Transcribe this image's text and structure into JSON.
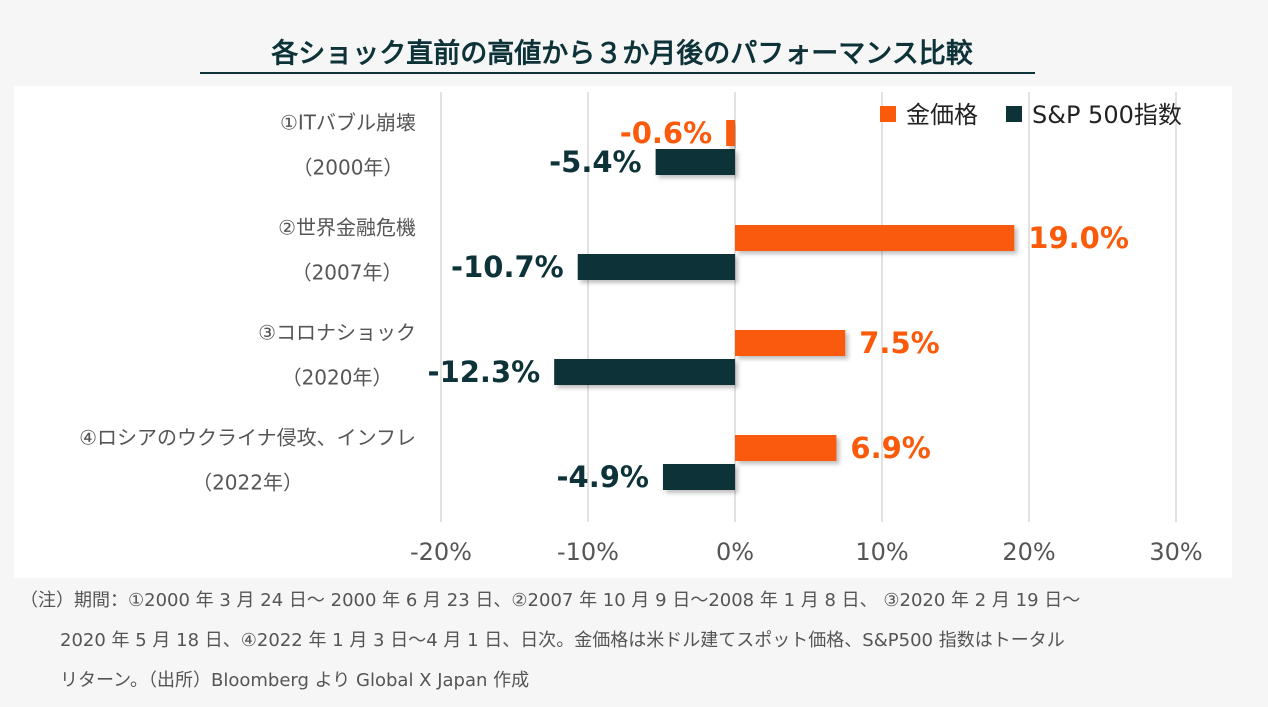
{
  "chart_data": {
    "type": "hbar",
    "title": "各ショック直前の高値から３か月後のパフォーマンス比較",
    "categories": [
      [
        "①ITバブル崩壊",
        "（2000年）"
      ],
      [
        "②世界金融危機",
        "（2007年）"
      ],
      [
        "③コロナショック",
        "（2020年）"
      ],
      [
        "④ロシアのウクライナ侵攻、インフレ",
        "（2022年）"
      ]
    ],
    "series": [
      {
        "name": "金価格",
        "color": "#fa5a0a",
        "values": [
          -0.6,
          19.0,
          7.5,
          6.9
        ],
        "value_labels": [
          "-0.6%",
          "19.0%",
          "7.5%",
          "6.9%"
        ]
      },
      {
        "name": "S&P 500指数",
        "color": "#0d3338",
        "values": [
          -5.4,
          -10.7,
          -12.3,
          -4.9
        ],
        "value_labels": [
          "-5.4%",
          "-10.7%",
          "-12.3%",
          "-4.9%"
        ]
      }
    ],
    "xlim": [
      -20,
      30
    ],
    "xticks": [
      {
        "value": -20,
        "label": "-20%"
      },
      {
        "value": -10,
        "label": "-10%"
      },
      {
        "value": 0,
        "label": "0%"
      },
      {
        "value": 10,
        "label": "10%"
      },
      {
        "value": 20,
        "label": "20%"
      },
      {
        "value": 30,
        "label": "30%"
      }
    ],
    "grid": true,
    "legend": "top-right",
    "notes": [
      "（注）期間：①2000 年 3 月 24 日～ 2000 年 6 月 23 日、②2007 年 10 月 9 日～2008 年 1 月 8 日、 ③2020 年 2 月 19 日～",
      "2020 年 5 月 18 日、④2022 年 1 月 3 日～4 月 1 日、日次。金価格は米ドル建てスポット価格、S&P500 指数はトータル",
      "リターン。（出所）Bloomberg より Global X Japan 作成"
    ]
  }
}
